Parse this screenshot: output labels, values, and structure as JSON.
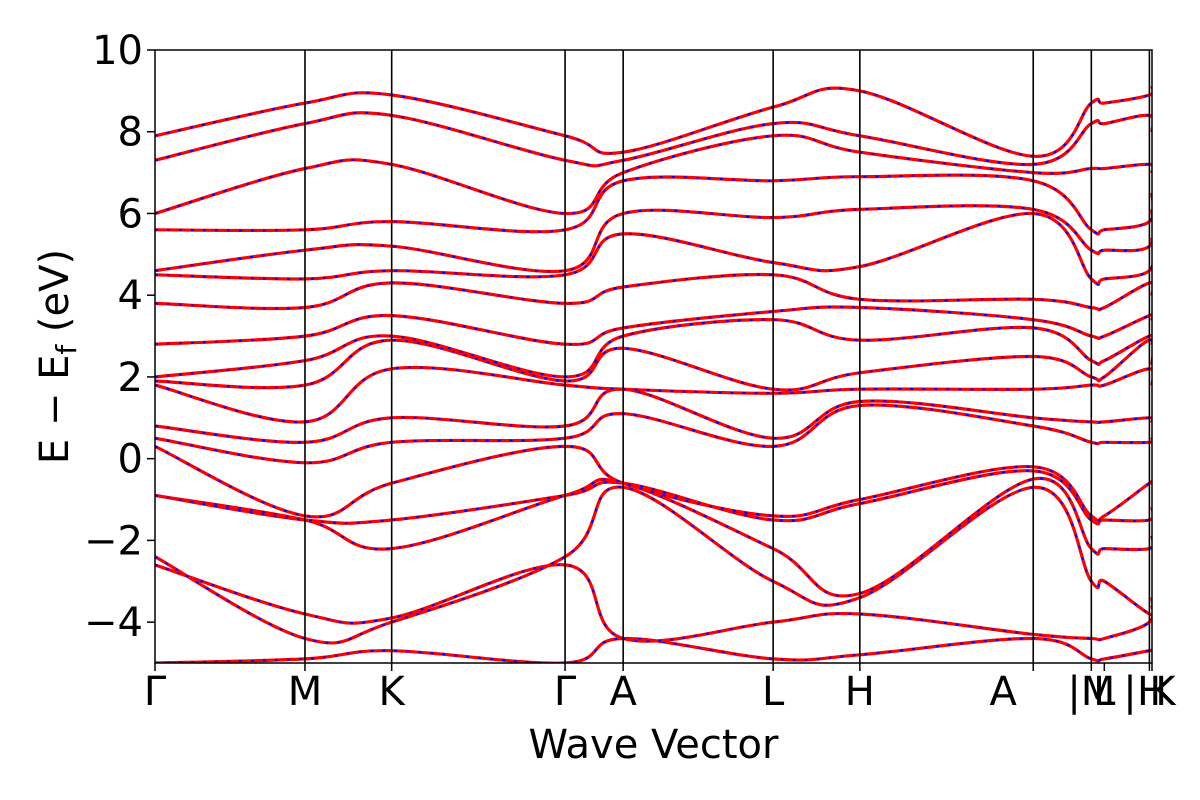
{
  "chart_data": {
    "type": "line",
    "xlabel": "Wave Vector",
    "ylabel": "E − E",
    "ylabel_subscript": "f",
    "ylabel_unit": " (eV)",
    "ylim": [
      -5,
      10
    ],
    "yticks": [
      -4,
      -2,
      0,
      2,
      4,
      6,
      8,
      10
    ],
    "ytick_labels": [
      "−4",
      "−2",
      "0",
      "2",
      "4",
      "6",
      "8",
      "10"
    ],
    "xlim": [
      0,
      11.5
    ],
    "kpoints": [
      {
        "x": 0.0,
        "label": "Γ"
      },
      {
        "x": 1.73,
        "label": "M"
      },
      {
        "x": 2.73,
        "label": "K"
      },
      {
        "x": 4.73,
        "label": "Γ"
      },
      {
        "x": 5.4,
        "label": "A"
      },
      {
        "x": 7.13,
        "label": "L"
      },
      {
        "x": 8.13,
        "label": "H"
      },
      {
        "x": 10.13,
        "label": "A"
      },
      {
        "x": 10.8,
        "label": "|M"
      },
      {
        "x": 10.95,
        "label": "L"
      },
      {
        "x": 11.47,
        "label": "| K"
      },
      {
        "x": 11.5,
        "label": "H"
      }
    ],
    "vlines": [
      1.73,
      2.73,
      4.73,
      5.4,
      7.13,
      8.13,
      10.13,
      10.8,
      11.47
    ],
    "colors": {
      "bands_primary": "#ff0000",
      "bands_overlay": "#0000ff"
    },
    "grid": false,
    "series": [
      {
        "values_at_kpoints": [
          -5.0,
          -4.9,
          -4.7,
          -5.0,
          -4.4,
          -4.9,
          -4.8,
          -4.4,
          -4.9,
          -4.9,
          -4.7,
          -4.7
        ]
      },
      {
        "values_at_kpoints": [
          -2.6,
          -3.8,
          -3.9,
          -2.6,
          -4.4,
          -4.0,
          -3.8,
          -4.3,
          -4.4,
          -4.4,
          -4.0,
          -3.4
        ]
      },
      {
        "values_at_kpoints": [
          -2.4,
          -4.4,
          -4.0,
          -2.4,
          -0.7,
          -3.0,
          -3.4,
          -0.7,
          -3.0,
          -3.0,
          -3.8,
          -3.6
        ]
      },
      {
        "values_at_kpoints": [
          -0.9,
          -1.5,
          -2.2,
          -0.9,
          -0.6,
          -2.2,
          -3.3,
          -0.5,
          -2.2,
          -2.2,
          -2.2,
          -1.9
        ]
      },
      {
        "values_at_kpoints": [
          -0.9,
          -1.5,
          -1.5,
          -0.9,
          -0.6,
          -1.5,
          -1.1,
          -0.3,
          -1.5,
          -1.5,
          -1.5,
          -1.2
        ]
      },
      {
        "values_at_kpoints": [
          0.3,
          -1.4,
          -0.6,
          0.3,
          -0.6,
          -1.4,
          -1.0,
          -0.2,
          -1.4,
          -1.4,
          -0.6,
          -0.6
        ]
      },
      {
        "values_at_kpoints": [
          0.5,
          -0.1,
          0.4,
          0.5,
          1.1,
          0.3,
          1.3,
          0.8,
          0.4,
          0.4,
          0.4,
          0.5
        ]
      },
      {
        "values_at_kpoints": [
          0.8,
          0.4,
          1.0,
          0.8,
          1.7,
          0.5,
          1.4,
          1.0,
          0.9,
          0.9,
          1.0,
          0.9
        ]
      },
      {
        "values_at_kpoints": [
          1.8,
          0.9,
          2.2,
          1.8,
          1.7,
          1.6,
          1.7,
          1.7,
          1.8,
          1.8,
          2.2,
          1.8
        ]
      },
      {
        "values_at_kpoints": [
          1.9,
          1.8,
          2.9,
          1.9,
          2.7,
          1.7,
          2.1,
          2.5,
          2.0,
          2.0,
          2.9,
          2.3
        ]
      },
      {
        "values_at_kpoints": [
          2.0,
          2.4,
          3.0,
          2.0,
          3.0,
          3.4,
          2.9,
          3.2,
          2.4,
          2.4,
          3.0,
          2.8
        ]
      },
      {
        "values_at_kpoints": [
          2.8,
          3.0,
          3.5,
          2.8,
          3.2,
          3.6,
          3.7,
          3.4,
          3.0,
          3.0,
          3.5,
          3.4
        ]
      },
      {
        "values_at_kpoints": [
          3.8,
          3.7,
          4.3,
          3.8,
          4.2,
          4.5,
          3.9,
          3.9,
          3.7,
          3.7,
          4.3,
          4.0
        ]
      },
      {
        "values_at_kpoints": [
          4.5,
          4.4,
          4.6,
          4.5,
          5.5,
          4.8,
          4.7,
          6.0,
          4.4,
          4.4,
          4.6,
          5.4
        ]
      },
      {
        "values_at_kpoints": [
          4.6,
          5.1,
          5.2,
          4.6,
          6.0,
          5.9,
          6.1,
          6.1,
          5.1,
          5.1,
          5.2,
          6.1
        ]
      },
      {
        "values_at_kpoints": [
          5.6,
          5.6,
          5.8,
          5.6,
          6.8,
          6.8,
          6.9,
          6.8,
          5.6,
          5.6,
          5.8,
          6.5
        ]
      },
      {
        "values_at_kpoints": [
          6.0,
          7.1,
          7.2,
          6.0,
          7.0,
          7.9,
          7.5,
          7.0,
          7.1,
          7.1,
          7.2,
          7.0
        ]
      },
      {
        "values_at_kpoints": [
          7.3,
          8.2,
          8.4,
          7.3,
          7.3,
          8.2,
          7.9,
          7.2,
          8.2,
          8.2,
          8.4,
          8.0
        ]
      },
      {
        "values_at_kpoints": [
          7.9,
          8.7,
          8.9,
          7.9,
          7.5,
          8.6,
          9.0,
          7.4,
          8.7,
          8.7,
          8.9,
          9.1
        ]
      }
    ]
  }
}
